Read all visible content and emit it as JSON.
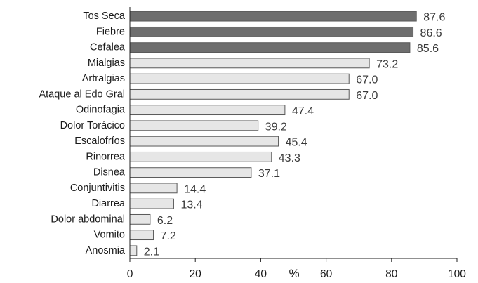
{
  "chart_data": {
    "type": "bar",
    "orientation": "horizontal",
    "categories": [
      "Tos Seca",
      "Fiebre",
      "Cefalea",
      "Mialgias",
      "Artralgias",
      "Ataque al Edo Gral",
      "Odinofagia",
      "Dolor Torácico",
      "Escalofríos",
      "Rinorrea",
      "Disnea",
      "Conjuntivitis",
      "Diarrea",
      "Dolor abdominal",
      "Vomito",
      "Anosmia"
    ],
    "values": [
      87.6,
      86.6,
      85.6,
      73.2,
      67.0,
      67.0,
      47.4,
      39.2,
      45.4,
      43.3,
      37.1,
      14.4,
      13.4,
      6.2,
      7.2,
      2.1
    ],
    "value_labels": [
      "87.6",
      "86.6",
      "85.6",
      "73.2",
      "67.0",
      "67.0",
      "47.4",
      "39.2",
      "45.4",
      "43.3",
      "37.1",
      "14.4",
      "13.4",
      "6.2",
      "7.2",
      "2.1"
    ],
    "highlighted_count": 3,
    "xlabel": "%",
    "xlim": [
      0,
      100
    ],
    "xticks": [
      0,
      20,
      40,
      60,
      80,
      100
    ],
    "grid": false,
    "legend": "none",
    "colors": {
      "highlight": "#6e6e6e",
      "normal": "#e6e6e6",
      "edge": "#595959",
      "axis": "#222222"
    }
  }
}
